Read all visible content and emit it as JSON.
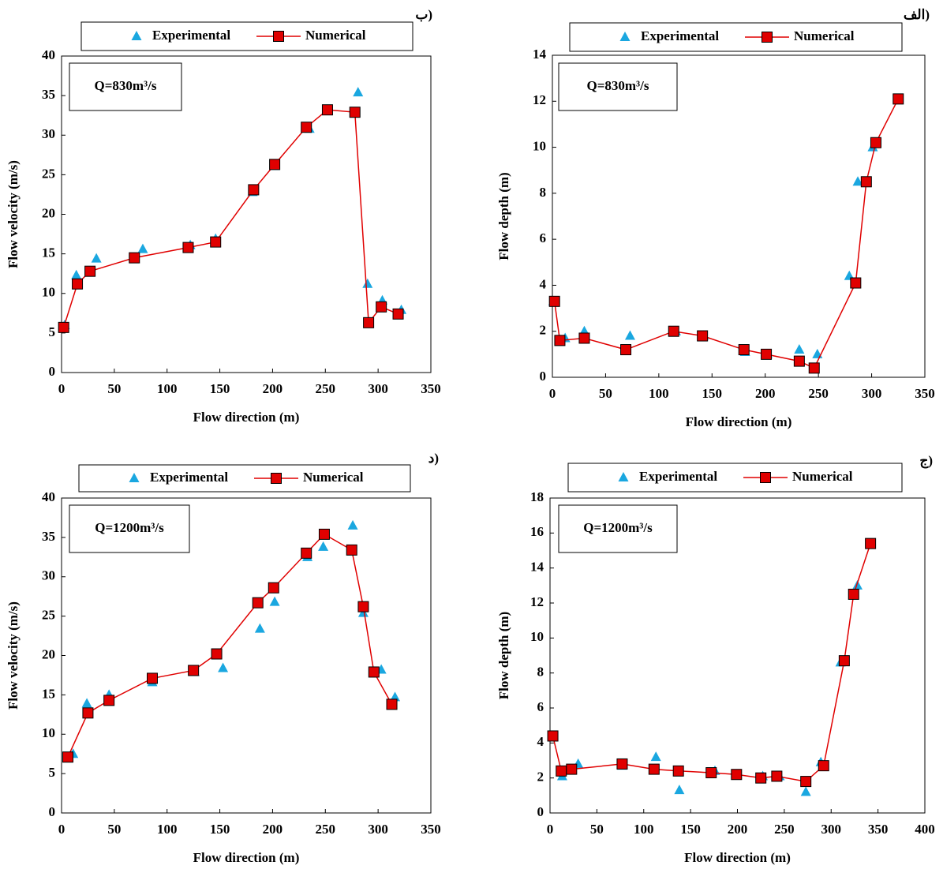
{
  "chart_data": [
    {
      "type": "line",
      "panel_label": "ب)",
      "annotation": "Q=830m³/s",
      "xlabel": "Flow direction (m)",
      "ylabel": "Flow velocity (m/s)",
      "xlim": [
        0,
        350
      ],
      "xticks": [
        0,
        50,
        100,
        150,
        200,
        250,
        300,
        350
      ],
      "ylim": [
        0,
        40
      ],
      "yticks": [
        0,
        5,
        10,
        15,
        20,
        25,
        30,
        35,
        40
      ],
      "series": [
        {
          "name": "Experimental",
          "color": "#1aa7e0",
          "marker": "triangle",
          "line": false,
          "x": [
            3,
            14,
            33,
            77,
            122,
            146,
            181,
            202,
            235,
            252,
            281,
            290,
            304,
            322
          ],
          "values": [
            6.0,
            12.3,
            14.4,
            15.6,
            16.1,
            16.9,
            22.8,
            26.1,
            30.8,
            33.2,
            35.4,
            11.2,
            9.1,
            7.9
          ]
        },
        {
          "name": "Numerical",
          "color": "#e00000",
          "marker": "square",
          "line": true,
          "x": [
            2,
            15,
            27,
            69,
            120,
            146,
            182,
            202,
            232,
            252,
            278,
            291,
            303,
            319
          ],
          "values": [
            5.7,
            11.2,
            12.8,
            14.5,
            15.8,
            16.5,
            23.1,
            26.3,
            31.0,
            33.2,
            32.9,
            6.3,
            8.3,
            7.4
          ]
        }
      ]
    },
    {
      "type": "line",
      "panel_label": "الف)",
      "annotation": "Q=830m³/s",
      "xlabel": "Flow direction (m)",
      "ylabel": "Flow depth (m)",
      "xlim": [
        0,
        350
      ],
      "xticks": [
        0,
        50,
        100,
        150,
        200,
        250,
        300,
        350
      ],
      "ylim": [
        0,
        14
      ],
      "yticks": [
        0,
        2,
        4,
        6,
        8,
        10,
        12,
        14
      ],
      "series": [
        {
          "name": "Experimental",
          "color": "#1aa7e0",
          "marker": "triangle",
          "line": false,
          "x": [
            1,
            12,
            30,
            73,
            116,
            142,
            181,
            202,
            232,
            249,
            279,
            287,
            301
          ],
          "values": [
            3.3,
            1.7,
            2.0,
            1.8,
            2.0,
            1.8,
            1.1,
            1.0,
            1.2,
            1.0,
            4.4,
            8.5,
            10.0
          ]
        },
        {
          "name": "Numerical",
          "color": "#e00000",
          "marker": "square",
          "line": true,
          "x": [
            2,
            7,
            30,
            69,
            114,
            141,
            180,
            201,
            232,
            246,
            285,
            295,
            304,
            325
          ],
          "values": [
            3.3,
            1.6,
            1.7,
            1.2,
            2.0,
            1.8,
            1.2,
            1.0,
            0.7,
            0.4,
            4.1,
            8.5,
            10.2,
            12.1
          ]
        }
      ]
    },
    {
      "type": "line",
      "panel_label": "د)",
      "annotation": "Q=1200m³/s",
      "xlabel": "Flow direction (m)",
      "ylabel": "Flow velocity (m/s)",
      "xlim": [
        0,
        350
      ],
      "xticks": [
        0,
        50,
        100,
        150,
        200,
        250,
        300,
        350
      ],
      "ylim": [
        0,
        40
      ],
      "yticks": [
        0,
        5,
        10,
        15,
        20,
        25,
        30,
        35,
        40
      ],
      "series": [
        {
          "name": "Experimental",
          "color": "#1aa7e0",
          "marker": "triangle",
          "line": false,
          "x": [
            11,
            24,
            45,
            86,
            126,
            153,
            188,
            202,
            233,
            248,
            276,
            286,
            303,
            316
          ],
          "values": [
            7.5,
            13.9,
            15.0,
            16.6,
            17.9,
            18.4,
            23.4,
            26.8,
            32.5,
            33.8,
            36.5,
            25.4,
            18.2,
            14.7
          ]
        },
        {
          "name": "Numerical",
          "color": "#e00000",
          "marker": "square",
          "line": true,
          "x": [
            6,
            25,
            45,
            86,
            125,
            147,
            186,
            201,
            232,
            249,
            275,
            286,
            296,
            313
          ],
          "values": [
            7.1,
            12.7,
            14.3,
            17.1,
            18.1,
            20.2,
            26.7,
            28.6,
            33.0,
            35.4,
            33.4,
            26.2,
            17.9,
            13.8
          ]
        }
      ]
    },
    {
      "type": "line",
      "panel_label": "ج)",
      "annotation": "Q=1200m³/s",
      "xlabel": "Flow direction (m)",
      "ylabel": "Flow depth (m)",
      "xlim": [
        0,
        400
      ],
      "xticks": [
        0,
        50,
        100,
        150,
        200,
        250,
        300,
        350,
        400
      ],
      "ylim": [
        0,
        18
      ],
      "yticks": [
        0,
        2,
        4,
        6,
        8,
        10,
        12,
        14,
        16,
        18
      ],
      "series": [
        {
          "name": "Experimental",
          "color": "#1aa7e0",
          "marker": "triangle",
          "line": false,
          "x": [
            3,
            13,
            30,
            77,
            113,
            138,
            176,
            199,
            227,
            245,
            273,
            289,
            310,
            328
          ],
          "values": [
            4.4,
            2.1,
            2.8,
            2.7,
            3.2,
            1.3,
            2.4,
            2.2,
            2.1,
            2.1,
            1.2,
            2.9,
            8.6,
            13.0
          ]
        },
        {
          "name": "Numerical",
          "color": "#e00000",
          "marker": "square",
          "line": true,
          "x": [
            3,
            12,
            23,
            77,
            111,
            137,
            172,
            199,
            225,
            242,
            273,
            292,
            314,
            324,
            342
          ],
          "values": [
            4.4,
            2.4,
            2.5,
            2.8,
            2.5,
            2.4,
            2.3,
            2.2,
            2.0,
            2.1,
            1.8,
            2.7,
            8.7,
            12.5,
            15.4
          ]
        }
      ]
    }
  ]
}
